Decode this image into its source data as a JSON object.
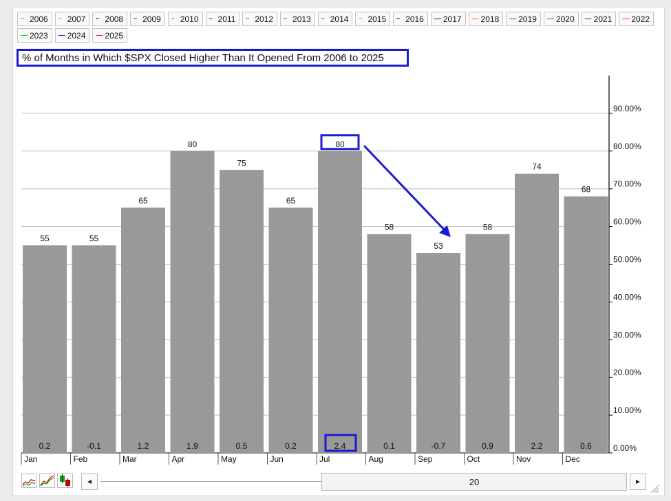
{
  "legend": {
    "row1": [
      {
        "label": "2006",
        "color": "#cc33cc",
        "style": "dot"
      },
      {
        "label": "2007",
        "color": "#33cc33",
        "style": "dot"
      },
      {
        "label": "2008",
        "color": "#1a1a99",
        "style": "dot"
      },
      {
        "label": "2009",
        "color": "#663300",
        "style": "dot"
      },
      {
        "label": "2010",
        "color": "#ff6600",
        "style": "dot"
      },
      {
        "label": "2011",
        "color": "#9900cc",
        "style": "dot"
      },
      {
        "label": "2012",
        "color": "#336699",
        "style": "dot"
      },
      {
        "label": "2013",
        "color": "#555555",
        "style": "dot"
      },
      {
        "label": "2014",
        "color": "#ff00ff",
        "style": "dot"
      },
      {
        "label": "2015",
        "color": "#33cc33",
        "style": "dot"
      },
      {
        "label": "2016",
        "color": "#1a1a99",
        "style": "dot"
      },
      {
        "label": "2017",
        "color": "#800000",
        "style": "solid"
      },
      {
        "label": "2018",
        "color": "#ff6600",
        "style": "solid"
      },
      {
        "label": "2019",
        "color": "#9900cc",
        "style": "solid"
      },
      {
        "label": "2020",
        "color": "#008080",
        "style": "solid"
      },
      {
        "label": "2021",
        "color": "#333333",
        "style": "solid"
      },
      {
        "label": "2022",
        "color": "#ff00ff",
        "style": "solid"
      }
    ],
    "row2": [
      {
        "label": "2023",
        "color": "#00cc00",
        "style": "solid"
      },
      {
        "label": "2024",
        "color": "#1a1acc",
        "style": "solid"
      },
      {
        "label": "2025",
        "color": "#ff0000",
        "style": "solid"
      }
    ]
  },
  "chart_data": {
    "type": "bar",
    "title": "% of Months in Which $SPX Closed Higher Than It Opened From 2006 to 2025",
    "categories": [
      "Jan",
      "Feb",
      "Mar",
      "Apr",
      "May",
      "Jun",
      "Jul",
      "Aug",
      "Sep",
      "Oct",
      "Nov",
      "Dec"
    ],
    "values": [
      55,
      55,
      65,
      80,
      75,
      65,
      80,
      58,
      53,
      58,
      74,
      68
    ],
    "bottom_labels": [
      "0.2",
      "-0.1",
      "1.2",
      "1.9",
      "0.5",
      "0.2",
      "2.4",
      "0.1",
      "-0.7",
      "0.9",
      "2.2",
      "0.6"
    ],
    "ylim": [
      0,
      100
    ],
    "yticks": [
      0,
      10,
      20,
      30,
      40,
      50,
      60,
      70,
      80,
      90
    ],
    "ytick_labels": [
      "0.00%",
      "10.00%",
      "20.00%",
      "30.00%",
      "40.00%",
      "50.00%",
      "60.00%",
      "70.00%",
      "80.00%",
      "90.00%"
    ],
    "grid": true,
    "y_axis_position": "right",
    "bar_color": "#999999",
    "highlight_color": "#1a1ad6",
    "highlighted_category": "Jul",
    "annotation": "arrow from Jul bar toward Sep bar"
  },
  "scrollbar": {
    "value": "20",
    "left_arrow": "◄",
    "right_arrow": "►"
  }
}
